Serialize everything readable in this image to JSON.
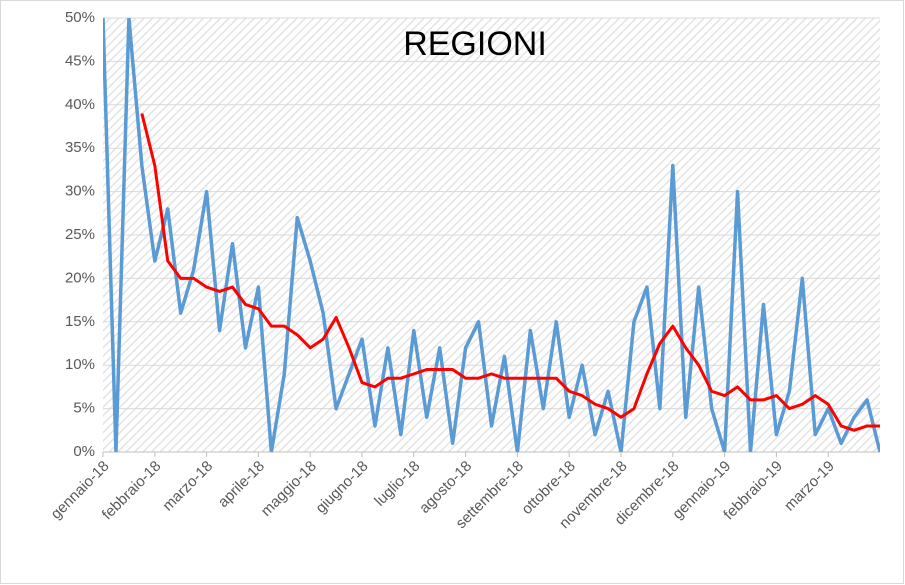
{
  "chart_data": {
    "type": "line",
    "title": "REGIONI",
    "categories": [
      "gennaio-18",
      null,
      null,
      null,
      "febbraio-18",
      null,
      null,
      null,
      "marzo-18",
      null,
      null,
      null,
      "aprile-18",
      null,
      null,
      null,
      "maggio-18",
      null,
      null,
      null,
      "giugno-18",
      null,
      null,
      null,
      "luglio-18",
      null,
      null,
      null,
      "agosto-18",
      null,
      null,
      null,
      "settembre-18",
      null,
      null,
      null,
      "ottobre-18",
      null,
      null,
      null,
      "novembre-18",
      null,
      null,
      null,
      "dicembre-18",
      null,
      null,
      null,
      "gennaio-19",
      null,
      null,
      null,
      "febbraio-19",
      null,
      null,
      null,
      "marzo-19",
      null,
      null,
      null,
      null
    ],
    "series": [
      {
        "color": "#5b9bd5",
        "values": [
          50,
          0,
          50,
          33,
          22,
          28,
          16,
          21,
          30,
          14,
          24,
          12,
          19,
          0,
          9,
          27,
          22,
          16,
          5,
          9,
          13,
          3,
          12,
          2,
          14,
          4,
          12,
          1,
          12,
          15,
          3,
          11,
          0,
          14,
          5,
          15,
          4,
          10,
          2,
          7,
          0,
          15,
          19,
          5,
          33,
          4,
          19,
          5,
          0,
          30,
          0,
          17,
          2,
          7,
          20,
          2,
          5,
          1,
          4,
          6,
          0
        ]
      },
      {
        "color": "#ff0000",
        "values": [
          null,
          null,
          null,
          39,
          33,
          22,
          20,
          20,
          19,
          18.5,
          19,
          17,
          16.5,
          14.5,
          14.5,
          13.5,
          12,
          13,
          15.5,
          12,
          8,
          7.5,
          8.5,
          8.5,
          9,
          9.5,
          9.5,
          9.5,
          8.5,
          8.5,
          9,
          8.5,
          8.5,
          8.5,
          8.5,
          8.5,
          7,
          6.5,
          5.5,
          5,
          4,
          5,
          9,
          12.5,
          14.5,
          12,
          10,
          7,
          6.5,
          7.5,
          6,
          6,
          6.5,
          5,
          5.5,
          6.5,
          5.5,
          3,
          2.5,
          3,
          3
        ]
      }
    ],
    "ylim": [
      0,
      50
    ],
    "yticks": [
      {
        "value": 0,
        "label": "0%"
      },
      {
        "value": 5,
        "label": "5%"
      },
      {
        "value": 10,
        "label": "10%"
      },
      {
        "value": 15,
        "label": "15%"
      },
      {
        "value": 20,
        "label": "20%"
      },
      {
        "value": 25,
        "label": "25%"
      },
      {
        "value": 30,
        "label": "30%"
      },
      {
        "value": 35,
        "label": "35%"
      },
      {
        "value": 40,
        "label": "40%"
      },
      {
        "value": 45,
        "label": "45%"
      },
      {
        "value": 50,
        "label": "50%"
      }
    ],
    "grid": true
  }
}
